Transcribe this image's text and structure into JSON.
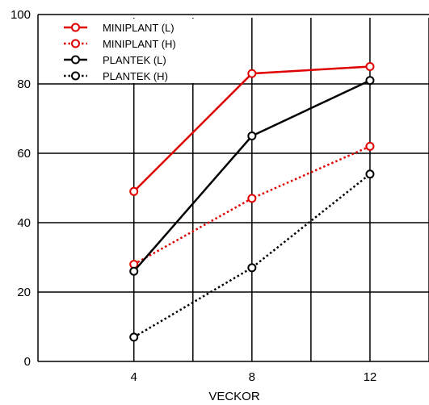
{
  "chart_data": {
    "type": "line",
    "xlabel": "VECKOR",
    "ylabel": "",
    "title": "",
    "x": [
      4,
      8,
      12
    ],
    "xticks": [
      "4",
      "8",
      "12"
    ],
    "yticks": [
      "0",
      "20",
      "40",
      "60",
      "80",
      "100"
    ],
    "xlim": [
      0.75,
      14
    ],
    "ylim": [
      0,
      100
    ],
    "grid": true,
    "legend_position": "top-left",
    "series": [
      {
        "name": "MINIPLANT (L)",
        "values": [
          49,
          83,
          85
        ],
        "color": "#e00000",
        "style": "solid"
      },
      {
        "name": "MINIPLANT (H)",
        "values": [
          28,
          47,
          62
        ],
        "color": "#e00000",
        "style": "dotted"
      },
      {
        "name": "PLANTEK (L)",
        "values": [
          26,
          65,
          81
        ],
        "color": "#000000",
        "style": "solid"
      },
      {
        "name": "PLANTEK (H)",
        "values": [
          7,
          27,
          54
        ],
        "color": "#000000",
        "style": "dotted"
      }
    ]
  }
}
